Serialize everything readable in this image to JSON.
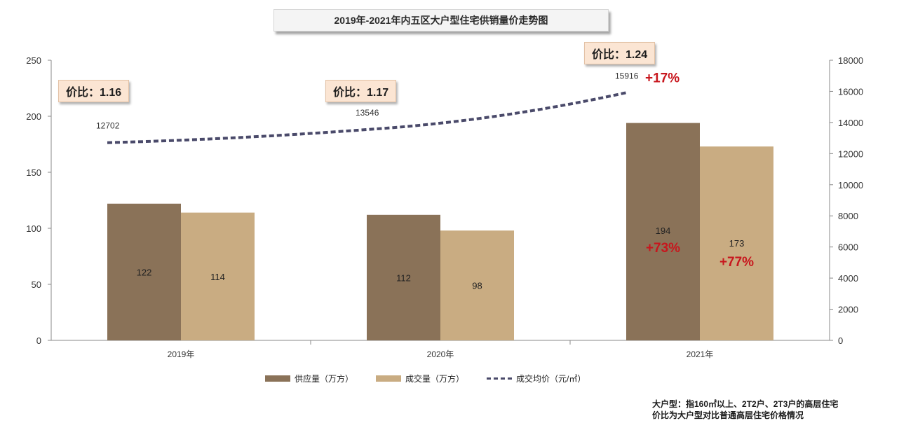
{
  "chart_data": {
    "type": "bar",
    "title": "2019年-2021年内五区大户型住宅供销量价走势图",
    "categories": [
      "2019年",
      "2020年",
      "2021年"
    ],
    "y_left": {
      "ylim": [
        0,
        250
      ],
      "ticks": [
        "0",
        "50",
        "100",
        "150",
        "200",
        "250"
      ]
    },
    "y_right": {
      "ylim": [
        0,
        18000
      ],
      "ticks": [
        "0",
        "2000",
        "4000",
        "6000",
        "8000",
        "10000",
        "12000",
        "14000",
        "16000",
        "18000"
      ]
    },
    "series": [
      {
        "name": "供应量（万方）",
        "type": "bar",
        "axis": "left",
        "color": "#8a7258",
        "values": [
          122,
          112,
          194
        ],
        "labels": [
          "122",
          "112",
          "194"
        ]
      },
      {
        "name": "成交量（万方）",
        "type": "bar",
        "axis": "left",
        "color": "#c9ac82",
        "values": [
          114,
          98,
          173
        ],
        "labels": [
          "114",
          "98",
          "173"
        ]
      },
      {
        "name": "成交均价（元/㎡）",
        "type": "line",
        "axis": "right",
        "color": "#4a4a6a",
        "style": "dashed",
        "values": [
          12702,
          13546,
          15916
        ],
        "labels": [
          "12702",
          "13546",
          "15916"
        ]
      }
    ],
    "growth_annotations": {
      "supply_2021": "+73%",
      "deal_2021": "+77%",
      "price_2021": "+17%"
    },
    "ratio_annotations": [
      "价比：1.16",
      "价比：1.17",
      "价比：1.24"
    ],
    "legend_position": "bottom",
    "grid": false
  },
  "legend": {
    "supply": "供应量（万方）",
    "deal": "成交量（万方）",
    "price": "成交均价（元/㎡）"
  },
  "footnote": {
    "line1": "大户型：指160㎡以上、2T2户、2T3户的高层住宅",
    "line2": "价比为大户型对比普通高层住宅价格情况"
  }
}
